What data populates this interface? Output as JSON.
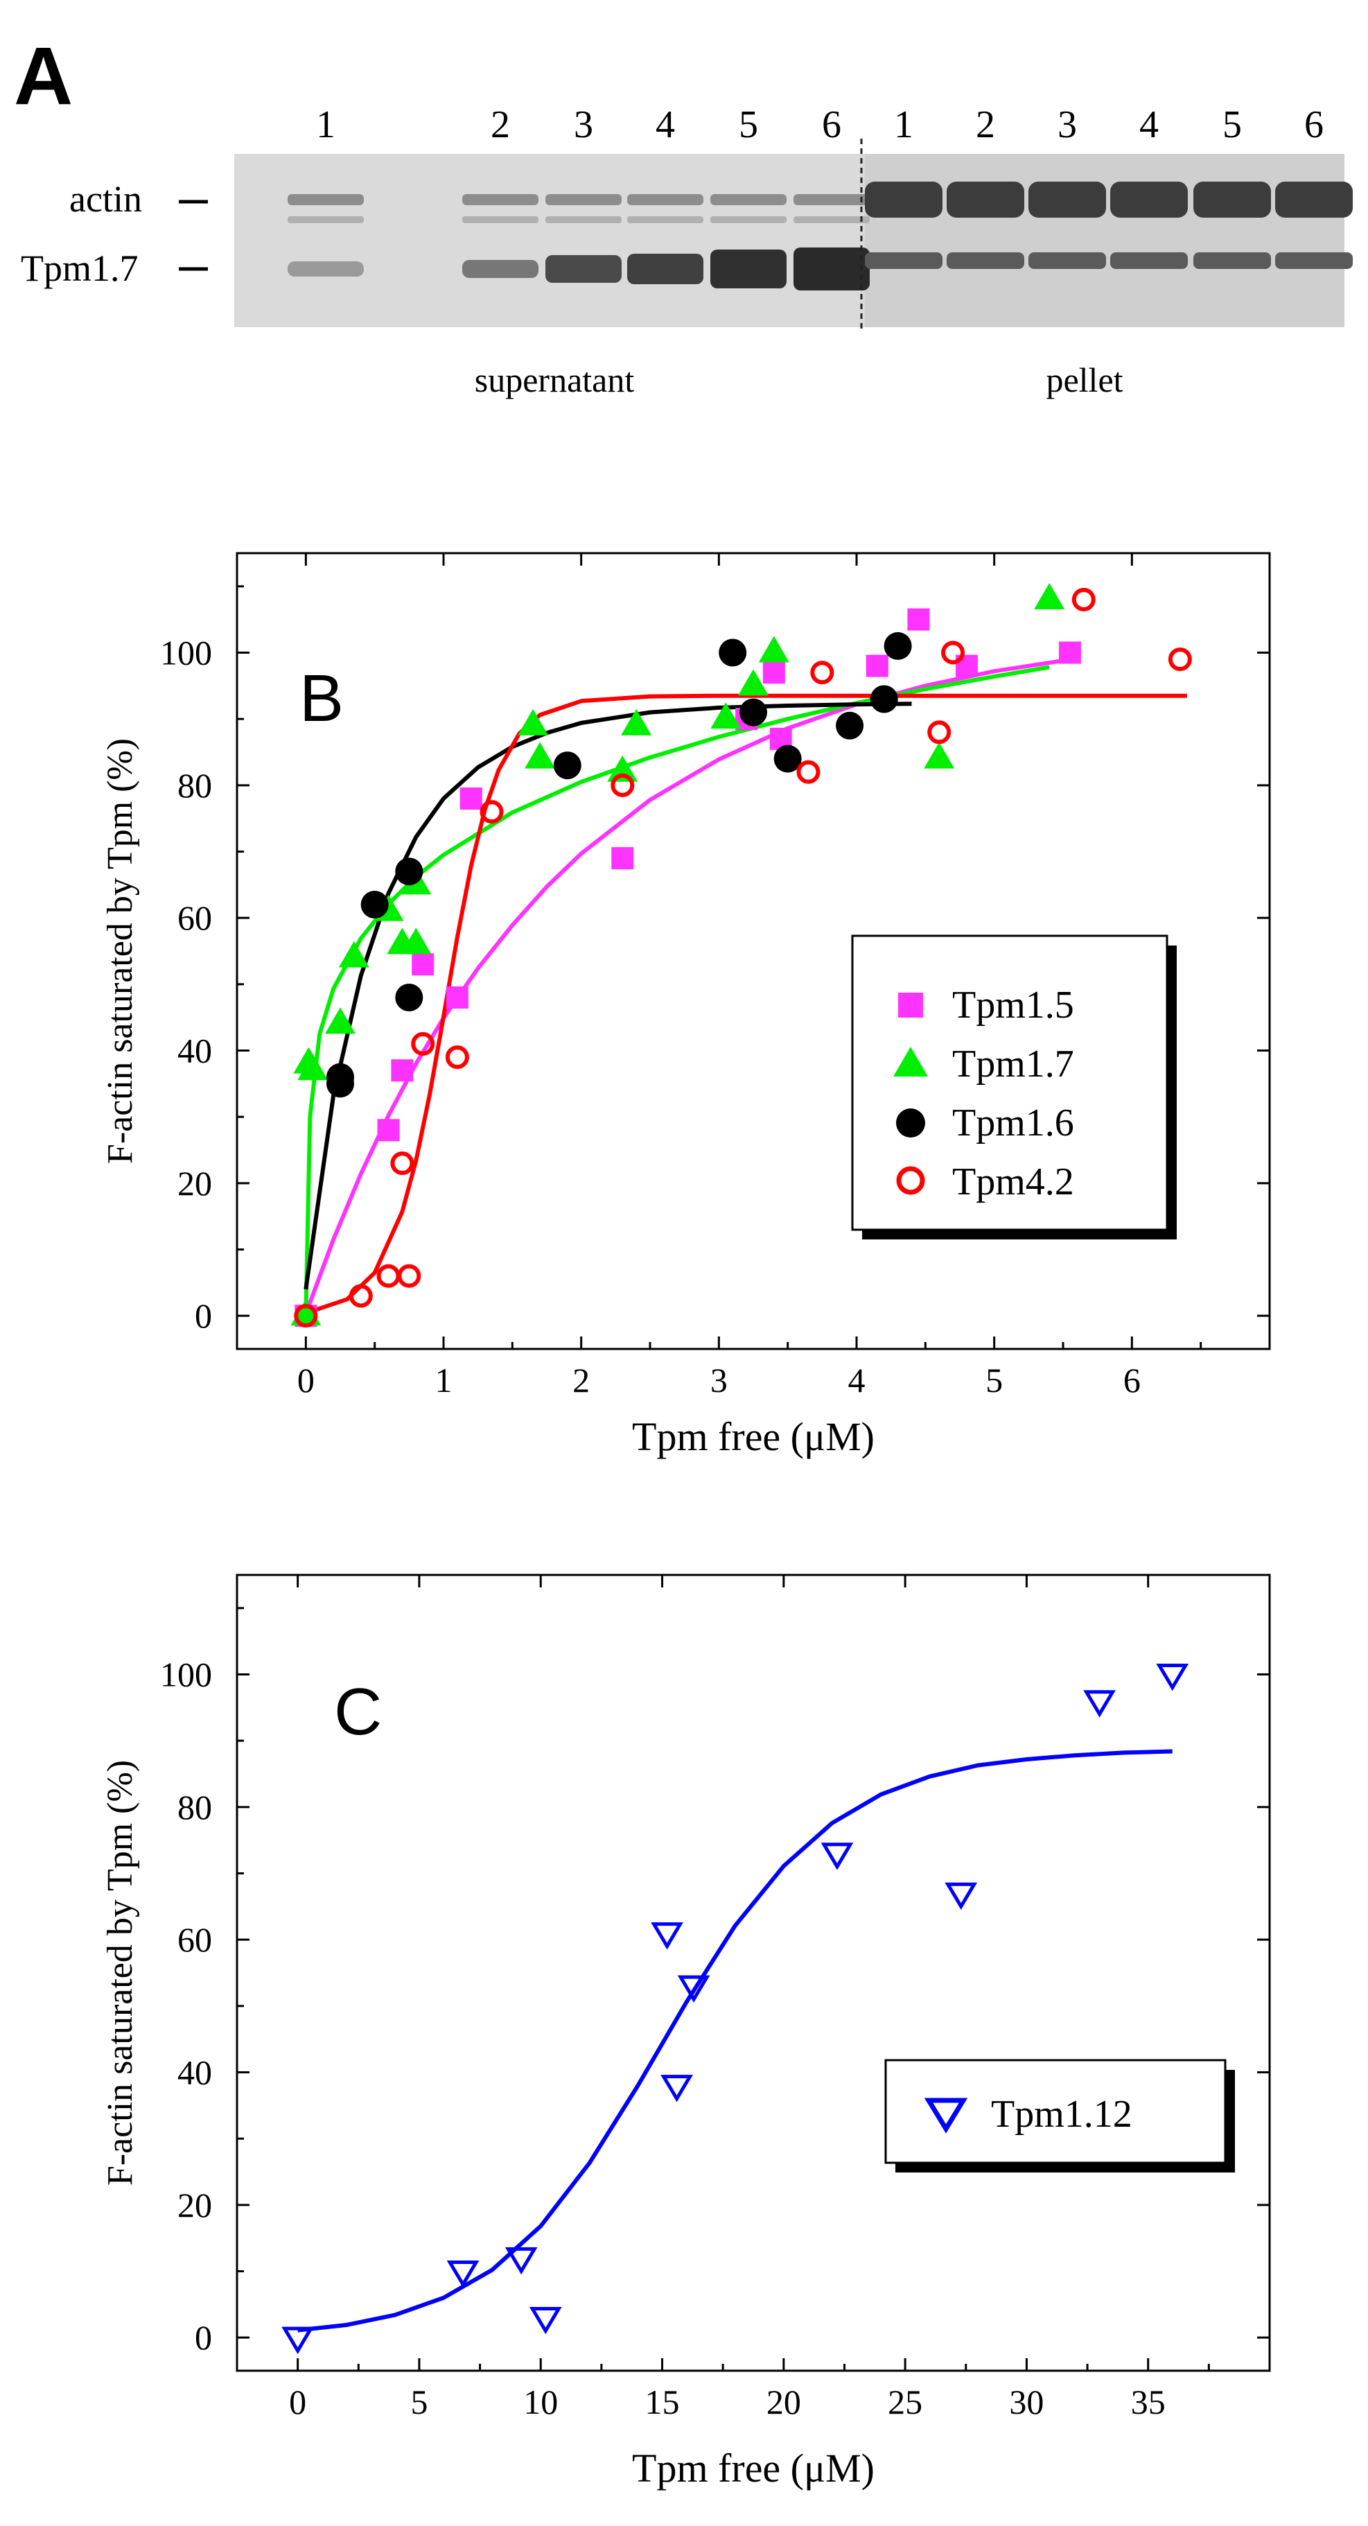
{
  "chart_data": [
    {
      "type": "gel",
      "panel_label": "A",
      "lane_labels": [
        "1",
        "2",
        "3",
        "4",
        "5",
        "6",
        "1",
        "2",
        "3",
        "4",
        "5",
        "6"
      ],
      "row_labels": [
        "actin",
        "Tpm1.7"
      ],
      "group_labels": [
        "supernatant",
        "pellet"
      ]
    },
    {
      "type": "scatter",
      "panel_label": "B",
      "xlabel": "Tpm free (μM)",
      "ylabel": "F-actin saturated by Tpm (%)",
      "xlim": [
        -0.5,
        7
      ],
      "ylim": [
        -5,
        115
      ],
      "xticks": [
        0,
        1,
        2,
        3,
        4,
        5,
        6
      ],
      "yticks": [
        0,
        20,
        40,
        60,
        80,
        100
      ],
      "legend_position": "right",
      "series": [
        {
          "name": "Tpm1.5",
          "marker": "square",
          "color": "#ff33ff",
          "points": [
            [
              0.0,
              0
            ],
            [
              0.6,
              28
            ],
            [
              0.7,
              37
            ],
            [
              0.85,
              53
            ],
            [
              1.1,
              48
            ],
            [
              1.2,
              78
            ],
            [
              2.3,
              69
            ],
            [
              3.2,
              90
            ],
            [
              3.4,
              97
            ],
            [
              3.45,
              87
            ],
            [
              4.15,
              98
            ],
            [
              4.45,
              105
            ],
            [
              4.8,
              98
            ],
            [
              5.55,
              100
            ]
          ],
          "fit": [
            [
              0.0,
              0.3
            ],
            [
              0.2,
              11.5
            ],
            [
              0.4,
              21.4
            ],
            [
              0.6,
              30.2
            ],
            [
              0.8,
              38.0
            ],
            [
              1.0,
              44.9
            ],
            [
              1.25,
              52.4
            ],
            [
              1.5,
              58.9
            ],
            [
              1.75,
              64.7
            ],
            [
              2.0,
              69.7
            ],
            [
              2.5,
              77.8
            ],
            [
              3.0,
              83.9
            ],
            [
              3.5,
              88.6
            ],
            [
              4.0,
              92.2
            ],
            [
              4.5,
              95.0
            ],
            [
              5.0,
              97.2
            ],
            [
              5.5,
              98.8
            ]
          ]
        },
        {
          "name": "Tpm1.7",
          "marker": "triangle-up",
          "color": "#00ee00",
          "points": [
            [
              0.0,
              0
            ],
            [
              0.02,
              38
            ],
            [
              0.05,
              37
            ],
            [
              0.25,
              44
            ],
            [
              0.35,
              54
            ],
            [
              0.6,
              61
            ],
            [
              0.7,
              56
            ],
            [
              0.8,
              65
            ],
            [
              0.8,
              56
            ],
            [
              1.65,
              89
            ],
            [
              1.7,
              84
            ],
            [
              2.3,
              82
            ],
            [
              2.4,
              89
            ],
            [
              3.05,
              90
            ],
            [
              3.25,
              95
            ],
            [
              3.4,
              100
            ],
            [
              4.6,
              84
            ],
            [
              5.4,
              108
            ]
          ],
          "fit": [
            [
              0.0,
              0
            ],
            [
              0.03,
              30
            ],
            [
              0.1,
              42.5
            ],
            [
              0.2,
              49.3
            ],
            [
              0.4,
              56.9
            ],
            [
              0.6,
              62.1
            ],
            [
              0.8,
              66.2
            ],
            [
              1.0,
              69.5
            ],
            [
              1.5,
              75.9
            ],
            [
              2.0,
              80.5
            ],
            [
              2.5,
              84.2
            ],
            [
              3.0,
              87.3
            ],
            [
              3.5,
              90.0
            ],
            [
              4.0,
              92.4
            ],
            [
              4.5,
              94.5
            ],
            [
              5.0,
              96.4
            ],
            [
              5.4,
              97.8
            ]
          ]
        },
        {
          "name": "Tpm1.6",
          "marker": "circle",
          "color": "#000000",
          "points": [
            [
              0.25,
              35
            ],
            [
              0.25,
              36
            ],
            [
              0.5,
              62
            ],
            [
              0.75,
              67
            ],
            [
              0.75,
              48
            ],
            [
              1.9,
              83
            ],
            [
              3.1,
              100
            ],
            [
              3.25,
              91
            ],
            [
              3.5,
              84
            ],
            [
              3.95,
              89
            ],
            [
              4.2,
              93
            ],
            [
              4.3,
              101
            ]
          ],
          "fit": [
            [
              0.0,
              4
            ],
            [
              0.2,
              33.2
            ],
            [
              0.4,
              51.3
            ],
            [
              0.6,
              63.7
            ],
            [
              0.8,
              72.2
            ],
            [
              1.0,
              78.0
            ],
            [
              1.25,
              82.7
            ],
            [
              1.5,
              85.8
            ],
            [
              1.75,
              87.9
            ],
            [
              2.0,
              89.4
            ],
            [
              2.5,
              91.0
            ],
            [
              3.0,
              91.7
            ],
            [
              3.5,
              92.0
            ],
            [
              4.0,
              92.2
            ],
            [
              4.4,
              92.3
            ]
          ]
        },
        {
          "name": "Tpm4.2",
          "marker": "open-circle",
          "color": "#ff0000",
          "points": [
            [
              0.0,
              0
            ],
            [
              0.4,
              3
            ],
            [
              0.6,
              6
            ],
            [
              0.7,
              23
            ],
            [
              0.75,
              6
            ],
            [
              0.85,
              41
            ],
            [
              1.1,
              39
            ],
            [
              1.35,
              76
            ],
            [
              2.3,
              80
            ],
            [
              3.65,
              82
            ],
            [
              3.75,
              97
            ],
            [
              4.6,
              88
            ],
            [
              4.7,
              100
            ],
            [
              5.65,
              108
            ],
            [
              6.35,
              99
            ]
          ],
          "fit": [
            [
              0.0,
              0.4
            ],
            [
              0.3,
              2.5
            ],
            [
              0.5,
              6.5
            ],
            [
              0.7,
              15.7
            ],
            [
              0.8,
              23.4
            ],
            [
              0.9,
              33.4
            ],
            [
              1.0,
              45.1
            ],
            [
              1.1,
              57.1
            ],
            [
              1.2,
              67.8
            ],
            [
              1.3,
              76.3
            ],
            [
              1.4,
              82.3
            ],
            [
              1.55,
              87.8
            ],
            [
              1.7,
              90.6
            ],
            [
              2.0,
              92.7
            ],
            [
              2.5,
              93.4
            ],
            [
              3.0,
              93.5
            ],
            [
              4.0,
              93.5
            ],
            [
              5.0,
              93.5
            ],
            [
              6.4,
              93.5
            ]
          ]
        }
      ]
    },
    {
      "type": "scatter",
      "panel_label": "C",
      "xlabel": "Tpm free (μM)",
      "ylabel": "F-actin saturated by Tpm (%)",
      "xlim": [
        -2.5,
        40
      ],
      "ylim": [
        -5,
        115
      ],
      "xticks": [
        0,
        5,
        10,
        15,
        20,
        25,
        30,
        35
      ],
      "yticks": [
        0,
        20,
        40,
        60,
        80,
        100
      ],
      "legend_position": "bottom-right",
      "series": [
        {
          "name": "Tpm1.12",
          "marker": "open-triangle-down",
          "color": "#0000ff",
          "points": [
            [
              0,
              0
            ],
            [
              6.8,
              10
            ],
            [
              9.2,
              12
            ],
            [
              10.2,
              3
            ],
            [
              15.2,
              61
            ],
            [
              15.6,
              38
            ],
            [
              16.3,
              53
            ],
            [
              22.2,
              73
            ],
            [
              27.3,
              67
            ],
            [
              33,
              96
            ],
            [
              36,
              100
            ]
          ],
          "fit": [
            [
              0,
              1.1
            ],
            [
              2,
              1.9
            ],
            [
              4,
              3.4
            ],
            [
              6,
              6.0
            ],
            [
              8,
              10.2
            ],
            [
              10,
              16.8
            ],
            [
              12,
              26.3
            ],
            [
              14,
              38.0
            ],
            [
              16,
              50.6
            ],
            [
              18,
              62.1
            ],
            [
              20,
              71.1
            ],
            [
              22,
              77.6
            ],
            [
              24,
              81.9
            ],
            [
              26,
              84.6
            ],
            [
              28,
              86.3
            ],
            [
              30,
              87.2
            ],
            [
              32,
              87.8
            ],
            [
              34,
              88.2
            ],
            [
              36,
              88.4
            ]
          ]
        }
      ]
    }
  ]
}
